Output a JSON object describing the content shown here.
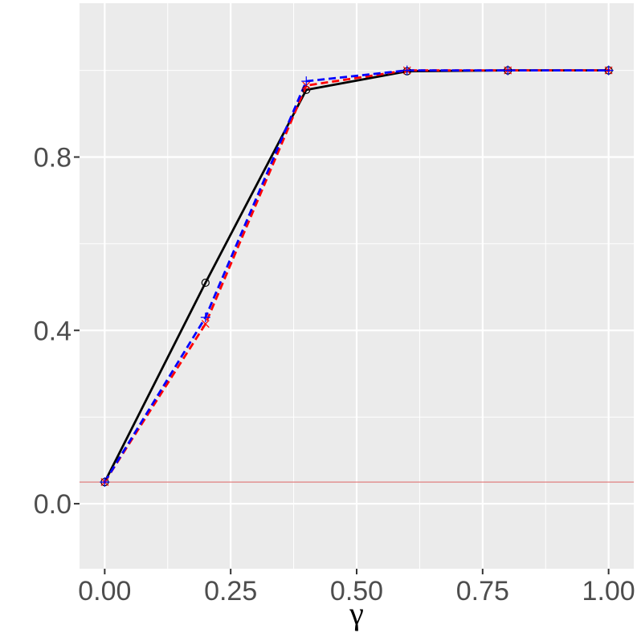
{
  "chart_data": {
    "type": "line",
    "title": "",
    "xlabel": "γ",
    "ylabel": "",
    "xlim": [
      -0.05,
      1.05
    ],
    "ylim": [
      -0.15,
      1.155
    ],
    "x_ticks": [
      0.0,
      0.25,
      0.5,
      0.75,
      1.0
    ],
    "x_tick_labels": [
      "0.00",
      "0.25",
      "0.50",
      "0.75",
      "1.00"
    ],
    "y_ticks": [
      0.0,
      0.4,
      0.8
    ],
    "y_tick_labels": [
      "0.0",
      "0.4",
      "0.8"
    ],
    "grid": true,
    "legend": "none",
    "reference_line": {
      "y": 0.05,
      "color": "#e08080"
    },
    "x": [
      0.0,
      0.2,
      0.4,
      0.6,
      0.8,
      1.0
    ],
    "series": [
      {
        "values": [
          0.05,
          0.51,
          0.955,
          0.998,
          1.0,
          1.0
        ],
        "color": "#000000",
        "dash": "solid",
        "marker": "circle"
      },
      {
        "values": [
          0.05,
          0.415,
          0.965,
          1.0,
          1.0,
          1.0
        ],
        "color": "#ff0000",
        "dash": "dashed",
        "marker": "x"
      },
      {
        "values": [
          0.05,
          0.43,
          0.975,
          1.0,
          1.0,
          1.0
        ],
        "color": "#0000ff",
        "dash": "dashed",
        "marker": "plus"
      }
    ]
  }
}
